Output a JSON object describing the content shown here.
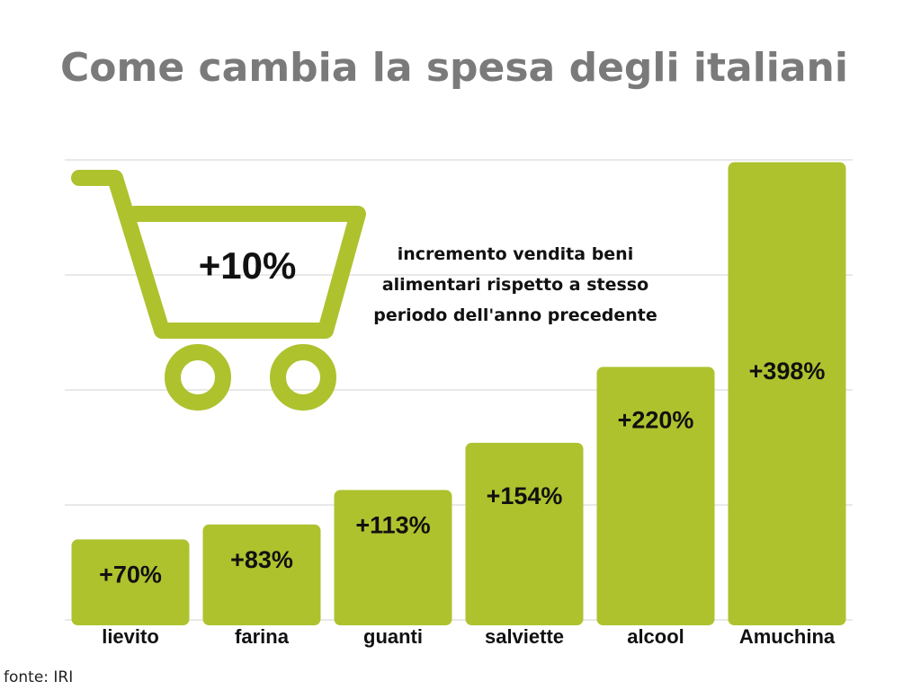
{
  "title": "Come cambia la spesa degli italiani",
  "callout": {
    "value": "+10%",
    "lines": [
      "incremento vendita beni",
      "alimentari rispetto a stesso",
      "periodo dell'anno precedente"
    ]
  },
  "source": "fonte: IRI",
  "colors": {
    "bar": "#aec22e",
    "grid": "#dcdcdc",
    "title": "#7a7a7a"
  },
  "icon": "shopping-cart-icon",
  "chart_data": {
    "type": "bar",
    "title": "Come cambia la spesa degli italiani",
    "categories": [
      "lievito",
      "farina",
      "guanti",
      "salviette",
      "alcool",
      "Amuchina"
    ],
    "values": [
      70,
      83,
      113,
      154,
      220,
      398
    ],
    "labels": [
      "+70%",
      "+83%",
      "+113%",
      "+154%",
      "+220%",
      "+398%"
    ],
    "xlabel": "",
    "ylabel": "",
    "ylim": [
      0,
      400
    ],
    "grid": true,
    "legend": "none"
  }
}
